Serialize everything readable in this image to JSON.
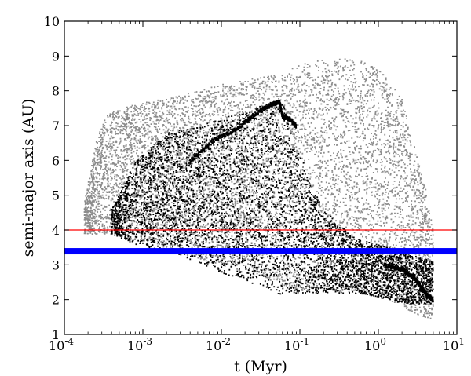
{
  "chart_data": {
    "type": "scatter",
    "title": "",
    "xlabel": "t (Myr)",
    "ylabel": "semi-major axis (AU)",
    "xscale": "log",
    "xlim": [
      0.0001,
      10
    ],
    "ylim": [
      1,
      10
    ],
    "x_ticks": [
      {
        "value": 0.0001,
        "base": "10",
        "exp": "-4"
      },
      {
        "value": 0.001,
        "base": "10",
        "exp": "-3"
      },
      {
        "value": 0.01,
        "base": "10",
        "exp": "-2"
      },
      {
        "value": 0.1,
        "base": "10",
        "exp": "-1"
      },
      {
        "value": 1,
        "base": "10",
        "exp": "0"
      },
      {
        "value": 10,
        "base": "10",
        "exp": "1"
      }
    ],
    "y_ticks": [
      1,
      2,
      3,
      4,
      5,
      6,
      7,
      8,
      9,
      10
    ],
    "grid": false,
    "legend": "none",
    "colors": {
      "gray_series": "#8c8c8c",
      "black_series": "#000000",
      "reference_line": "#ff0000",
      "band": "#0000ff"
    },
    "reference_line": {
      "y": 4.0
    },
    "band": {
      "y_min": 3.3,
      "y_max": 3.48
    },
    "series": [
      {
        "color": "gray",
        "envelope": [
          {
            "t": 0.00018,
            "min": 3.9,
            "max": 4.8
          },
          {
            "t": 0.00025,
            "min": 3.9,
            "max": 6.5
          },
          {
            "t": 0.00035,
            "min": 3.9,
            "max": 7.4
          },
          {
            "t": 0.0007,
            "min": 3.8,
            "max": 7.6
          },
          {
            "t": 0.002,
            "min": 3.5,
            "max": 7.8
          },
          {
            "t": 0.005,
            "min": 3.2,
            "max": 8.0
          },
          {
            "t": 0.01,
            "min": 3.0,
            "max": 8.2
          },
          {
            "t": 0.03,
            "min": 2.7,
            "max": 8.4
          },
          {
            "t": 0.06,
            "min": 2.4,
            "max": 8.5
          },
          {
            "t": 0.1,
            "min": 2.3,
            "max": 8.8
          },
          {
            "t": 0.2,
            "min": 2.3,
            "max": 8.9
          },
          {
            "t": 0.5,
            "min": 2.2,
            "max": 8.95
          },
          {
            "t": 1.0,
            "min": 2.1,
            "max": 8.7
          },
          {
            "t": 2.0,
            "min": 1.8,
            "max": 7.8
          },
          {
            "t": 3.0,
            "min": 1.6,
            "max": 6.3
          },
          {
            "t": 4.0,
            "min": 1.5,
            "max": 5.2
          },
          {
            "t": 5.0,
            "min": 1.45,
            "max": 4.0
          }
        ]
      },
      {
        "color": "black",
        "envelope": [
          {
            "t": 0.0004,
            "min": 3.9,
            "max": 4.6
          },
          {
            "t": 0.0008,
            "min": 3.6,
            "max": 6.0
          },
          {
            "t": 0.002,
            "min": 3.4,
            "max": 6.8
          },
          {
            "t": 0.005,
            "min": 3.1,
            "max": 7.0
          },
          {
            "t": 0.01,
            "min": 2.8,
            "max": 7.2
          },
          {
            "t": 0.03,
            "min": 2.4,
            "max": 7.6
          },
          {
            "t": 0.06,
            "min": 2.1,
            "max": 7.7
          },
          {
            "t": 0.1,
            "min": 2.2,
            "max": 6.2
          },
          {
            "t": 0.2,
            "min": 2.2,
            "max": 4.6
          },
          {
            "t": 0.5,
            "min": 2.2,
            "max": 3.8
          },
          {
            "t": 1.0,
            "min": 2.1,
            "max": 3.6
          },
          {
            "t": 2.0,
            "min": 1.9,
            "max": 3.4
          },
          {
            "t": 5.0,
            "min": 1.9,
            "max": 3.1
          }
        ],
        "highlight_track": [
          {
            "t": 0.004,
            "a": 6.0
          },
          {
            "t": 0.008,
            "a": 6.6
          },
          {
            "t": 0.015,
            "a": 6.9
          },
          {
            "t": 0.025,
            "a": 7.3
          },
          {
            "t": 0.04,
            "a": 7.6
          },
          {
            "t": 0.055,
            "a": 7.7
          },
          {
            "t": 0.06,
            "a": 7.3
          },
          {
            "t": 0.075,
            "a": 7.2
          },
          {
            "t": 0.09,
            "a": 7.0
          }
        ],
        "late_track": [
          {
            "t": 1.2,
            "a": 3.0
          },
          {
            "t": 2.0,
            "a": 2.9
          },
          {
            "t": 3.0,
            "a": 2.6
          },
          {
            "t": 4.0,
            "a": 2.2
          },
          {
            "t": 5.0,
            "a": 2.0
          }
        ]
      }
    ]
  }
}
